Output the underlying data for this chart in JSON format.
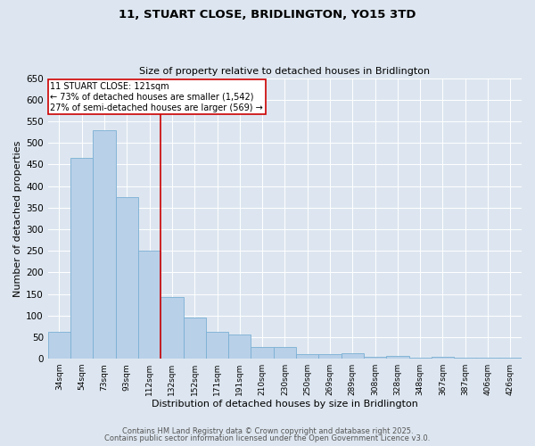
{
  "title": "11, STUART CLOSE, BRIDLINGTON, YO15 3TD",
  "subtitle": "Size of property relative to detached houses in Bridlington",
  "xlabel": "Distribution of detached houses by size in Bridlington",
  "ylabel": "Number of detached properties",
  "categories": [
    "34sqm",
    "54sqm",
    "73sqm",
    "93sqm",
    "112sqm",
    "132sqm",
    "152sqm",
    "171sqm",
    "191sqm",
    "210sqm",
    "230sqm",
    "250sqm",
    "269sqm",
    "289sqm",
    "308sqm",
    "328sqm",
    "348sqm",
    "367sqm",
    "387sqm",
    "406sqm",
    "426sqm"
  ],
  "values": [
    62,
    465,
    530,
    375,
    250,
    143,
    95,
    62,
    55,
    28,
    28,
    10,
    10,
    12,
    5,
    7,
    3,
    5,
    3,
    2,
    2
  ],
  "bar_color": "#b8d0e8",
  "bar_edge_color": "#7aafd4",
  "vline_x_idx": 4.5,
  "vline_color": "#cc0000",
  "annotation_title": "11 STUART CLOSE: 121sqm",
  "annotation_line1": "← 73% of detached houses are smaller (1,542)",
  "annotation_line2": "27% of semi-detached houses are larger (569) →",
  "annotation_box_color": "#ffffff",
  "annotation_box_edge_color": "#cc0000",
  "ylim": [
    0,
    650
  ],
  "yticks": [
    0,
    50,
    100,
    150,
    200,
    250,
    300,
    350,
    400,
    450,
    500,
    550,
    600,
    650
  ],
  "bg_color": "#dde6f0",
  "plot_bg_color": "#dde6f0",
  "footer_line1": "Contains HM Land Registry data © Crown copyright and database right 2025.",
  "footer_line2": "Contains public sector information licensed under the Open Government Licence v3.0."
}
